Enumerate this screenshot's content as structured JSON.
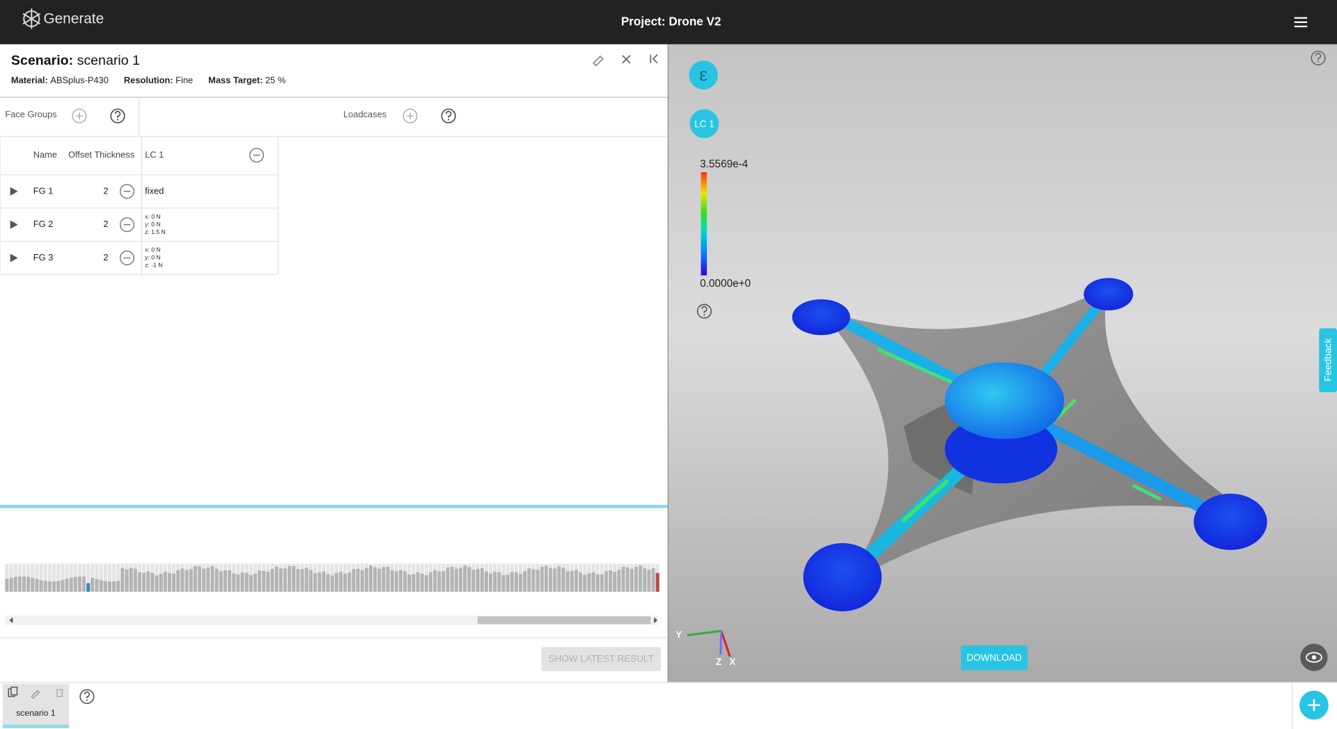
{
  "header": {
    "logo": "Generate",
    "title": "Project: Drone V2"
  },
  "scenario": {
    "label": "Scenario:",
    "name": "scenario 1",
    "material_label": "Material:",
    "material": "ABSplus-P430",
    "resolution_label": "Resolution:",
    "resolution": "Fine",
    "mass_target_label": "Mass Target:",
    "mass_target": "25 %"
  },
  "tabs": {
    "face_groups": "Face Groups",
    "loadcases": "Loadcases"
  },
  "table": {
    "headers": [
      "Name",
      "Offset Thickness",
      "LC 1"
    ],
    "rows": [
      {
        "name": "FG 1",
        "offset_thickness": 2,
        "lc": [
          "fixed"
        ]
      },
      {
        "name": "FG 2",
        "offset_thickness": 2,
        "lc": [
          "x: 0 N",
          "y: 0 N",
          "z: 1.5 N"
        ]
      },
      {
        "name": "FG 3",
        "offset_thickness": 2,
        "lc": [
          "x: 0 N",
          "y: 0 N",
          "z: -1 N"
        ]
      }
    ]
  },
  "viewport": {
    "strain_button": "ε",
    "loadcase_button": "LC 1",
    "legend_max": "3.5569e-4",
    "legend_min": "0.0000e+0",
    "feedback": "Feedback",
    "download": "DOWNLOAD",
    "axes": [
      "Y",
      "Z",
      "X"
    ]
  },
  "footer": {
    "show_latest": "SHOW LATEST RESULT",
    "tab": "scenario 1"
  }
}
